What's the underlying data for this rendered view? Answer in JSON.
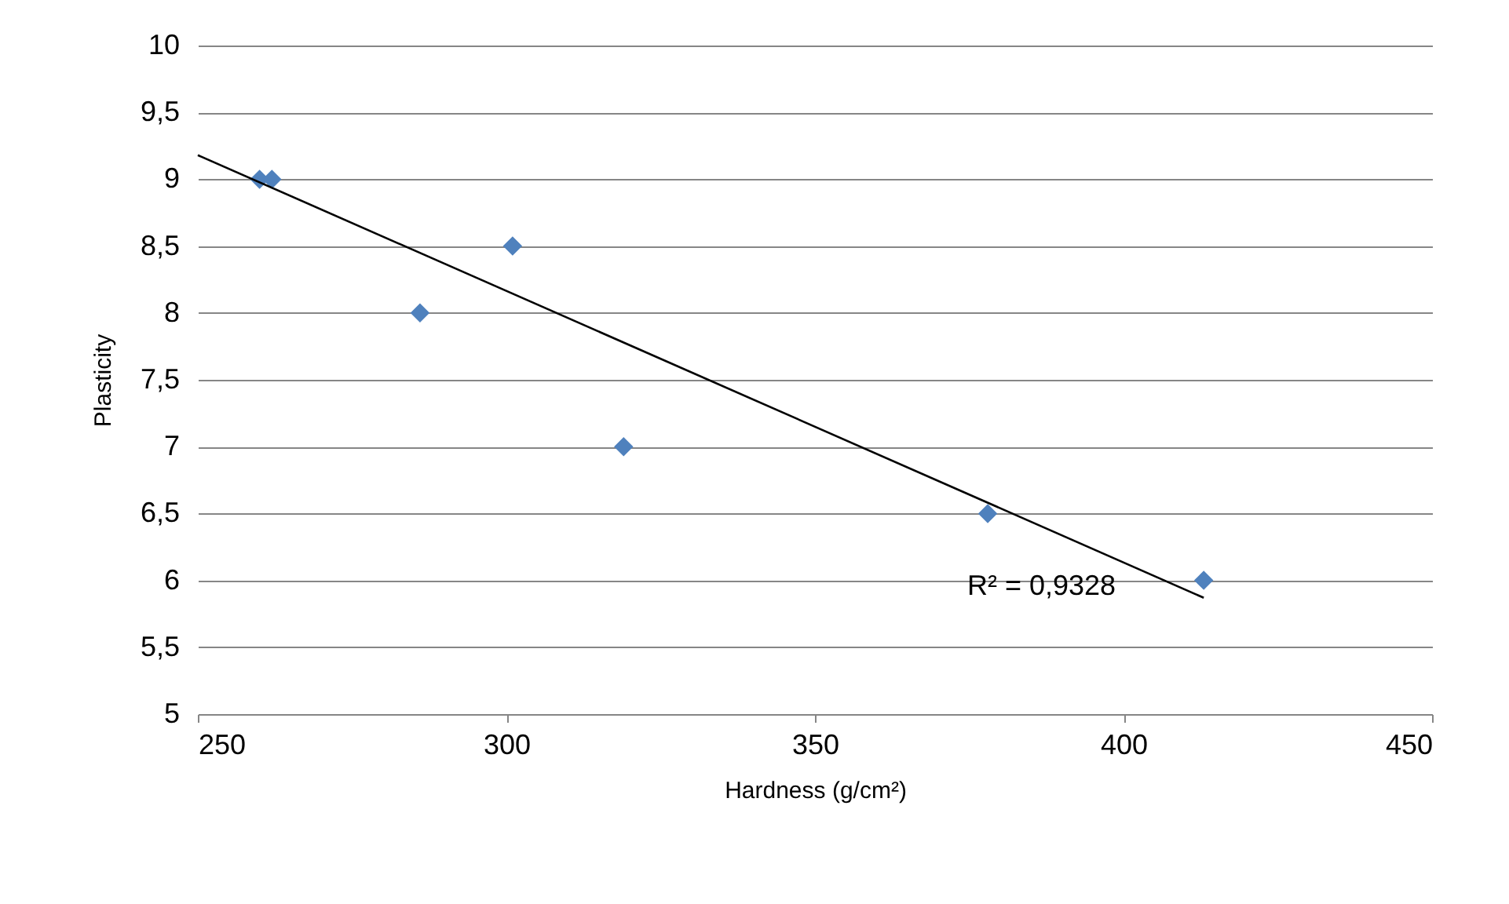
{
  "chart_data": {
    "type": "scatter",
    "xlabel": "Hardness (g/cm²)",
    "ylabel": "Plasticity",
    "grid": "y",
    "xlim": [
      250,
      450
    ],
    "xticks": [
      250,
      300,
      350,
      400,
      450
    ],
    "ylim": [
      5,
      10
    ],
    "yticks": [
      5,
      {
        "value": 5.5,
        "label": "5,5"
      },
      6,
      {
        "value": 6.5,
        "label": "6,5"
      },
      7,
      {
        "value": 7.5,
        "label": "7,5"
      },
      8,
      {
        "value": 8.5,
        "label": "8,5"
      },
      9,
      {
        "value": 9.5,
        "label": "9,5"
      },
      10
    ],
    "series": [
      {
        "color": "#4f81bd",
        "marker": "diamond",
        "x": [
          260,
          262,
          286,
          301,
          319,
          378,
          413
        ],
        "values": [
          9,
          9,
          8,
          8.5,
          7,
          6.5,
          6
        ]
      },
      {
        "type": "line",
        "marker": "none",
        "color": "#000000",
        "x": [
          250,
          413
        ],
        "values": [
          9.18,
          5.87
        ]
      }
    ],
    "annotations": [
      "R² = 0,9328"
    ]
  }
}
